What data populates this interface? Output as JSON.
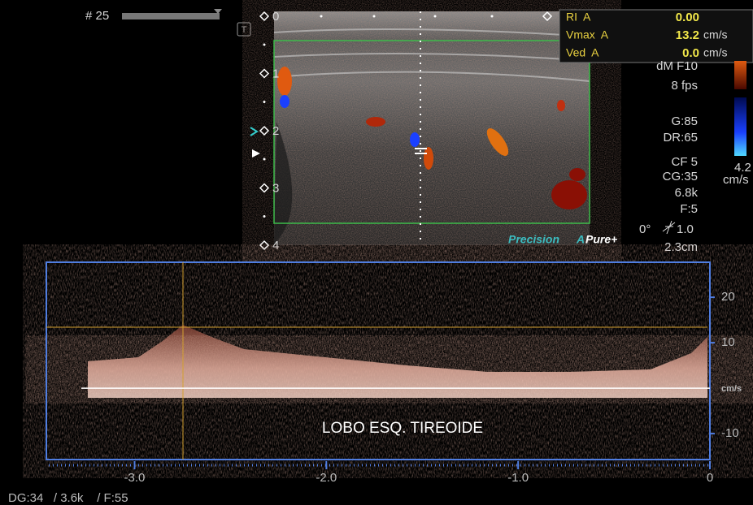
{
  "header": {
    "frame": "# 25"
  },
  "depth_markers": [
    "0",
    "1",
    "2",
    "3",
    "4"
  ],
  "measurements": [
    {
      "label": "RI  A",
      "value": "0.00",
      "unit": ""
    },
    {
      "label": "Vmax  A",
      "value": "13.2",
      "unit": "cm/s"
    },
    {
      "label": "Ved  A",
      "value": "0.0",
      "unit": "cm/s"
    }
  ],
  "parameters": [
    "dM F10",
    "8 fps",
    "G:85",
    "DR:65",
    "CF 5",
    "CG:35",
    "6.8k",
    "F:5"
  ],
  "angle": "0°",
  "steer": "1.0",
  "gate": "2.3cm",
  "color_scale": {
    "value": "4.2",
    "unit": "cm/s"
  },
  "branding": {
    "precision": "Precision",
    "a": "A",
    "pure": "Pure+"
  },
  "doppler": {
    "annotation": "LOBO ESQ. TIREOIDE",
    "unit": "cm/s",
    "ylim": [
      -15.7,
      27.7
    ],
    "yticks": [
      20,
      10,
      -10
    ],
    "xlim": [
      -3.46,
      0
    ],
    "xticks": [
      {
        "value": -3,
        "label": "-3.0"
      },
      {
        "value": -2,
        "label": "-2.0"
      },
      {
        "value": -1,
        "label": "-1.0"
      },
      0
    ]
  },
  "footer": "DG:34   / 3.6k    / F:55"
}
